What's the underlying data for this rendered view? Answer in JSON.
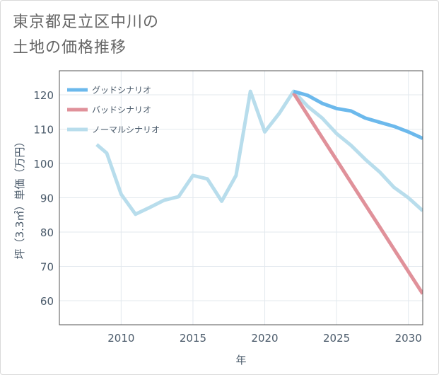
{
  "title": {
    "line1": "東京都足立区中川の",
    "line2": "土地の価格推移"
  },
  "chart_data": {
    "type": "line",
    "title": "東京都足立区中川の土地の価格推移",
    "xlabel": "年",
    "ylabel": "坪（3.3㎡）単価（万円）",
    "xlim": [
      2005.7,
      2031
    ],
    "ylim": [
      53,
      127
    ],
    "xticks": [
      2010,
      2015,
      2020,
      2025,
      2030
    ],
    "yticks": [
      60,
      70,
      80,
      90,
      100,
      110,
      120
    ],
    "grid": true,
    "legend_position": "top-left",
    "series": [
      {
        "name": "ノーマルシナリオ",
        "color": "#b8ddec",
        "x": [
          2008.3,
          2009,
          2010,
          2011,
          2012,
          2013,
          2014,
          2015,
          2016,
          2017,
          2018,
          2019,
          2020,
          2021,
          2022,
          2023,
          2024,
          2025,
          2026,
          2027,
          2028,
          2029,
          2030,
          2031
        ],
        "values": [
          105.5,
          103,
          91,
          85.2,
          87.2,
          89.3,
          90.3,
          96.5,
          95.5,
          89,
          96.5,
          121,
          109.2,
          114.5,
          121,
          116.6,
          113.2,
          108.7,
          105.3,
          101.2,
          97.5,
          93,
          90,
          86.2
        ]
      },
      {
        "name": "グッドシナリオ",
        "color": "#6cb9ec",
        "x": [
          2022,
          2023,
          2024,
          2025,
          2026,
          2027,
          2028,
          2029,
          2030,
          2031
        ],
        "values": [
          121,
          119.8,
          117.5,
          116,
          115.3,
          113.2,
          112,
          110.8,
          109.2,
          107.3
        ]
      },
      {
        "name": "バッドシナリオ",
        "color": "#e0919a",
        "x": [
          2022,
          2023,
          2024,
          2025,
          2026,
          2027,
          2028,
          2029,
          2030,
          2031
        ],
        "values": [
          120.5,
          114,
          107.5,
          101,
          94.5,
          88,
          81.5,
          75,
          68.5,
          62
        ]
      }
    ],
    "legend_order": [
      "グッドシナリオ",
      "バッドシナリオ",
      "ノーマルシナリオ"
    ]
  }
}
